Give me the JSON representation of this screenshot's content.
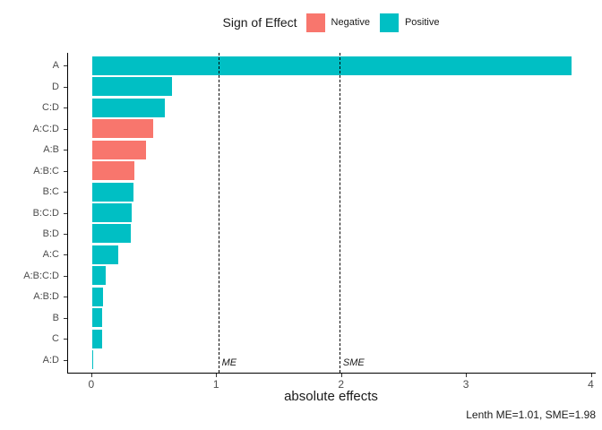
{
  "legend": {
    "title": "Sign of Effect",
    "items": [
      {
        "label": "Negative",
        "color": "#F8766D"
      },
      {
        "label": "Positive",
        "color": "#00BFC4"
      }
    ]
  },
  "chart_data": {
    "type": "bar",
    "orientation": "horizontal",
    "title": "",
    "xlabel": "absolute effects",
    "ylabel": "",
    "xlim": [
      0,
      4
    ],
    "x_ticks": [
      0,
      1,
      2,
      3,
      4
    ],
    "grid": false,
    "legend_position": "top",
    "categories": [
      "A",
      "D",
      "C:D",
      "A:C:D",
      "A:B",
      "A:B:C",
      "B:C",
      "B:C:D",
      "B:D",
      "A:C",
      "A:B:C:D",
      "A:B:D",
      "B",
      "C",
      "A:D"
    ],
    "values": [
      3.84,
      0.64,
      0.58,
      0.49,
      0.43,
      0.34,
      0.33,
      0.32,
      0.31,
      0.21,
      0.11,
      0.09,
      0.08,
      0.08,
      0.01
    ],
    "signs": [
      "Positive",
      "Positive",
      "Positive",
      "Negative",
      "Negative",
      "Negative",
      "Positive",
      "Positive",
      "Positive",
      "Positive",
      "Positive",
      "Positive",
      "Positive",
      "Positive",
      "Positive"
    ],
    "colors": {
      "Negative": "#F8766D",
      "Positive": "#00BFC4"
    },
    "reference_lines": [
      {
        "label": "ME",
        "value": 1.01
      },
      {
        "label": "SME",
        "value": 1.98
      }
    ]
  },
  "caption": "Lenth ME=1.01, SME=1.98"
}
